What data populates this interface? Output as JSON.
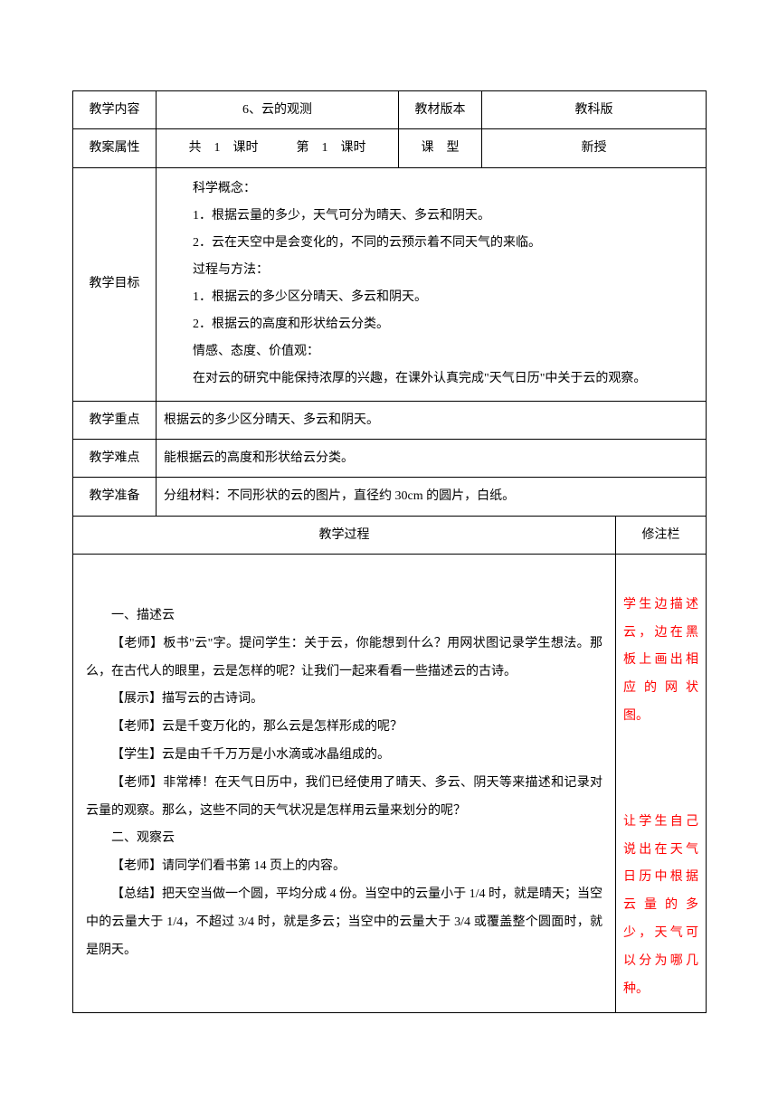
{
  "header": {
    "row1": {
      "label1": "教学内容",
      "content1": "6、云的观测",
      "label2": "教材版本",
      "content2": "教科版"
    },
    "row2": {
      "label1": "教案属性",
      "content1": "共　1　课时　　　第　1　课时",
      "label2": "课　型",
      "content2": "新授"
    }
  },
  "objectives": {
    "label": "教学目标",
    "concepts_title": "科学概念：",
    "concept1": "1．根据云量的多少，天气可分为晴天、多云和阴天。",
    "concept2": "2．云在天空中是会变化的，不同的云预示着不同天气的来临。",
    "methods_title": "过程与方法：",
    "method1": "1．根据云的多少区分晴天、多云和阴天。",
    "method2": "2．根据云的高度和形状给云分类。",
    "attitude_title": "情感、态度、价值观：",
    "attitude1": "在对云的研究中能保持浓厚的兴趣，在课外认真完成\"天气日历\"中关于云的观察。"
  },
  "emphasis": {
    "label": "教学重点",
    "content": "根据云的多少区分晴天、多云和阴天。"
  },
  "difficulty": {
    "label": "教学难点",
    "content": "能根据云的高度和形状给云分类。"
  },
  "preparation": {
    "label": "教学准备",
    "content": "分组材料：不同形状的云的图片，直径约 30cm 的圆片，白纸。"
  },
  "process": {
    "title": "教学过程",
    "notes_title": "修注栏",
    "body": {
      "p1": "一、描述云",
      "p2": "【老师】板书\"云\"字。提问学生：关于云，你能想到什么？用网状图记录学生想法。那么，在古代人的眼里，云是怎样的呢？让我们一起来看看一些描述云的古诗。",
      "p3": "【展示】描写云的古诗词。",
      "p4": "【老师】云是千变万化的，那么云是怎样形成的呢？",
      "p5": "【学生】云是由千千万万是小水滴或冰晶组成的。",
      "p6": "【老师】非常棒！在天气日历中，我们已经使用了晴天、多云、阴天等来描述和记录对云量的观察。那么，这些不同的天气状况是怎样用云量来划分的呢？",
      "p7": "二、观察云",
      "p8": "【老师】请同学们看书第 14 页上的内容。",
      "p9": "【总结】把天空当做一个圆，平均分成 4 份。当空中的云量小于 1/4 时，就是晴天；当空中的云量大于 1/4，不超过 3/4 时，就是多云；当空中的云量大于 3/4 或覆盖整个圆面时，就是阴天。"
    },
    "notes": {
      "n1": "学生边描述云，边在黑板上画出相应的网状图。",
      "n2": "让学生自己说出在天气日历中根据云量的多少，天气可以分为哪几种。"
    }
  }
}
